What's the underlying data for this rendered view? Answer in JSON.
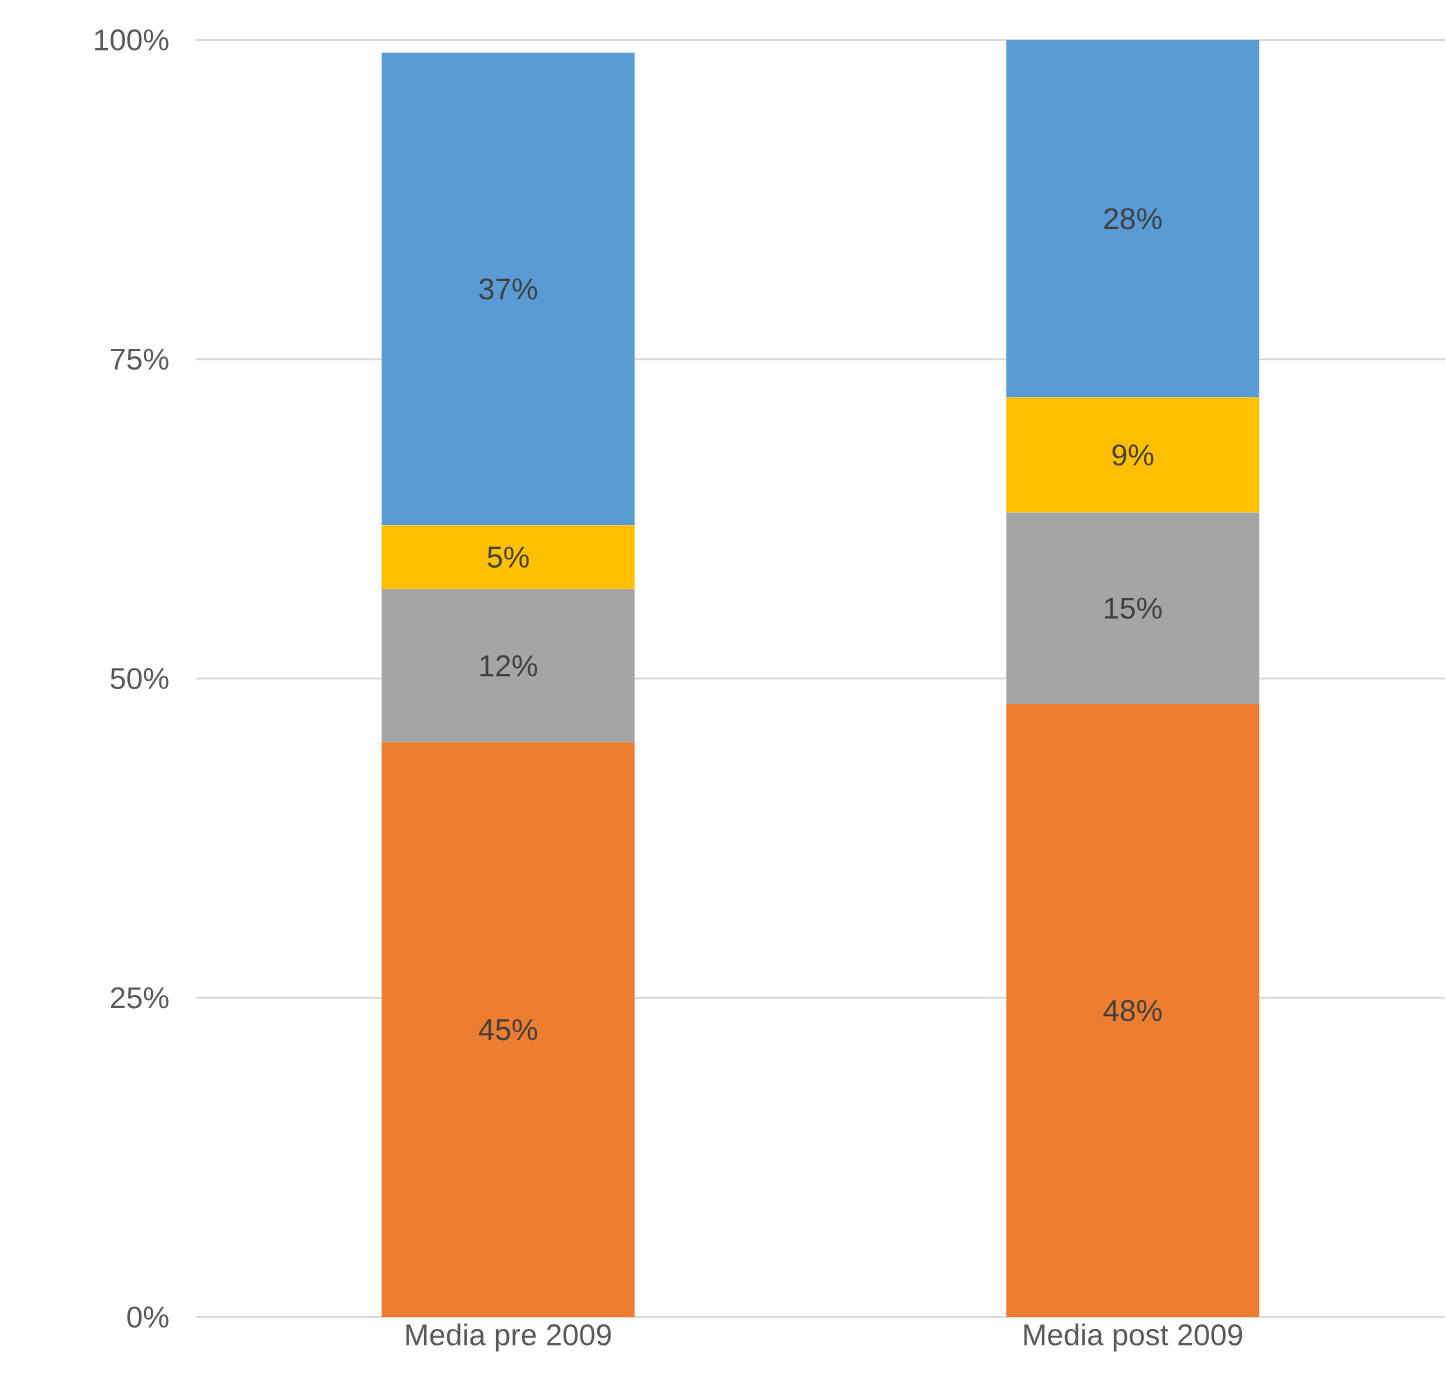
{
  "chart_data": {
    "type": "bar",
    "stacked": true,
    "grid": "y",
    "categories": [
      "Media pre 2009",
      "Media post 2009"
    ],
    "series": [
      {
        "color": "#ed7d31",
        "values": [
          45,
          48
        ],
        "value_labels": [
          "45%",
          "48%"
        ]
      },
      {
        "color": "#a5a5a5",
        "values": [
          12,
          15
        ],
        "value_labels": [
          "12%",
          "15%"
        ]
      },
      {
        "color": "#ffc000",
        "values": [
          5,
          9
        ],
        "value_labels": [
          "5%",
          "9%"
        ]
      },
      {
        "color": "#5b9bd5",
        "values": [
          37,
          28
        ],
        "value_labels": [
          "37%",
          "28%"
        ]
      }
    ],
    "ylim": [
      0,
      100
    ],
    "yticks": [
      {
        "value": 0,
        "label": "0%"
      },
      {
        "value": 25,
        "label": "25%"
      },
      {
        "value": 50,
        "label": "50%"
      },
      {
        "value": 75,
        "label": "75%"
      },
      {
        "value": 100,
        "label": "100%"
      }
    ]
  }
}
